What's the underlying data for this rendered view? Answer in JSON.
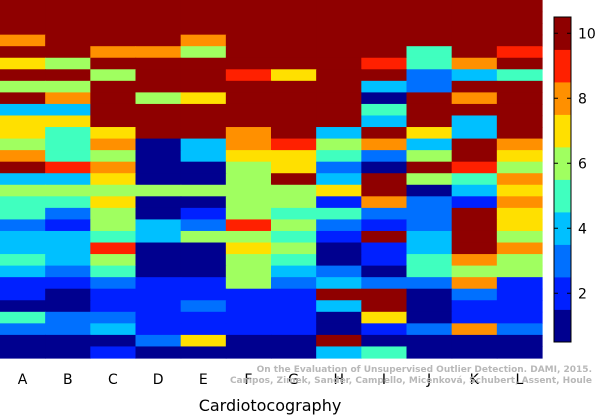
{
  "chart_data": {
    "type": "heatmap",
    "title": "",
    "xlabel": "Cardiotocography",
    "ylabel": "",
    "columns": [
      "A",
      "B",
      "C",
      "D",
      "E",
      "F",
      "G",
      "H",
      "I",
      "J",
      "K",
      "L"
    ],
    "row_count": 31,
    "value_range": [
      0.5,
      10.5
    ],
    "colorbar": {
      "ticks": [
        2,
        4,
        6,
        8,
        10
      ],
      "range": [
        0.5,
        10.5
      ],
      "levels": 10
    },
    "colors": [
      "#00008f",
      "#0020ff",
      "#0070ff",
      "#00c0ff",
      "#40ffbf",
      "#a0ff60",
      "#ffe000",
      "#ff9000",
      "#ff2000",
      "#8f0000"
    ],
    "grid": false,
    "values": [
      [
        10,
        10,
        10,
        10,
        10,
        10,
        10,
        10,
        10,
        10,
        10,
        10
      ],
      [
        10,
        10,
        10,
        10,
        10,
        10,
        10,
        10,
        10,
        10,
        10,
        10
      ],
      [
        10,
        10,
        10,
        10,
        10,
        10,
        10,
        10,
        10,
        10,
        10,
        10
      ],
      [
        8,
        10,
        10,
        10,
        8,
        10,
        10,
        10,
        10,
        10,
        10,
        10
      ],
      [
        10,
        10,
        8,
        8,
        6,
        10,
        10,
        10,
        10,
        5,
        10,
        9
      ],
      [
        7,
        6,
        10,
        10,
        10,
        10,
        10,
        10,
        9,
        5,
        8,
        10
      ],
      [
        10,
        10,
        6,
        10,
        10,
        9,
        7,
        10,
        10,
        3,
        4,
        5
      ],
      [
        6,
        6,
        10,
        10,
        10,
        10,
        10,
        10,
        4,
        3,
        10,
        10
      ],
      [
        10,
        8,
        10,
        6,
        7,
        10,
        10,
        10,
        1,
        10,
        8,
        10
      ],
      [
        4,
        4,
        10,
        10,
        10,
        10,
        10,
        10,
        5,
        10,
        10,
        10
      ],
      [
        7,
        7,
        10,
        10,
        10,
        10,
        10,
        10,
        4,
        10,
        4,
        10
      ],
      [
        7,
        5,
        7,
        10,
        10,
        8,
        10,
        4,
        10,
        7,
        4,
        10
      ],
      [
        6,
        5,
        8,
        1,
        4,
        8,
        9,
        6,
        8,
        4,
        10,
        8
      ],
      [
        8,
        5,
        6,
        1,
        4,
        7,
        7,
        5,
        3,
        6,
        10,
        7
      ],
      [
        10,
        9,
        8,
        1,
        1,
        6,
        7,
        3,
        1,
        10,
        9,
        6
      ],
      [
        4,
        4,
        7,
        1,
        1,
        6,
        10,
        4,
        10,
        6,
        5,
        8
      ],
      [
        6,
        6,
        6,
        6,
        6,
        6,
        6,
        7,
        10,
        1,
        4,
        7
      ],
      [
        5,
        5,
        7,
        1,
        1,
        6,
        6,
        2,
        8,
        3,
        2,
        8
      ],
      [
        5,
        3,
        6,
        1,
        2,
        6,
        5,
        5,
        3,
        3,
        10,
        7
      ],
      [
        3,
        2,
        6,
        4,
        3,
        9,
        6,
        3,
        2,
        3,
        10,
        7
      ],
      [
        4,
        4,
        5,
        4,
        6,
        6,
        5,
        2,
        10,
        4,
        10,
        6
      ],
      [
        4,
        4,
        9,
        1,
        1,
        7,
        6,
        1,
        2,
        4,
        10,
        8
      ],
      [
        5,
        4,
        6,
        1,
        1,
        6,
        5,
        1,
        2,
        5,
        8,
        6
      ],
      [
        4,
        3,
        5,
        1,
        1,
        6,
        4,
        3,
        1,
        5,
        6,
        6
      ],
      [
        2,
        2,
        3,
        2,
        2,
        6,
        3,
        4,
        3,
        3,
        8,
        2
      ],
      [
        2,
        1,
        2,
        2,
        2,
        2,
        2,
        10,
        10,
        1,
        3,
        2
      ],
      [
        1,
        1,
        2,
        2,
        3,
        2,
        2,
        4,
        10,
        1,
        2,
        2
      ],
      [
        5,
        3,
        3,
        2,
        2,
        2,
        2,
        1,
        7,
        1,
        2,
        2
      ],
      [
        3,
        3,
        4,
        2,
        2,
        2,
        2,
        1,
        2,
        3,
        8,
        3
      ],
      [
        1,
        1,
        1,
        3,
        7,
        1,
        1,
        10,
        1,
        1,
        1,
        1
      ],
      [
        1,
        1,
        2,
        1,
        1,
        1,
        1,
        4,
        5,
        1,
        1,
        1
      ]
    ]
  },
  "credit": {
    "line1": "On the Evaluation of Unsupervised Outlier Detection. DAMI, 2015.",
    "line2": "Campos, Zimek, Sander, Campello, Micenková, Schubert, Assent, Houle"
  }
}
